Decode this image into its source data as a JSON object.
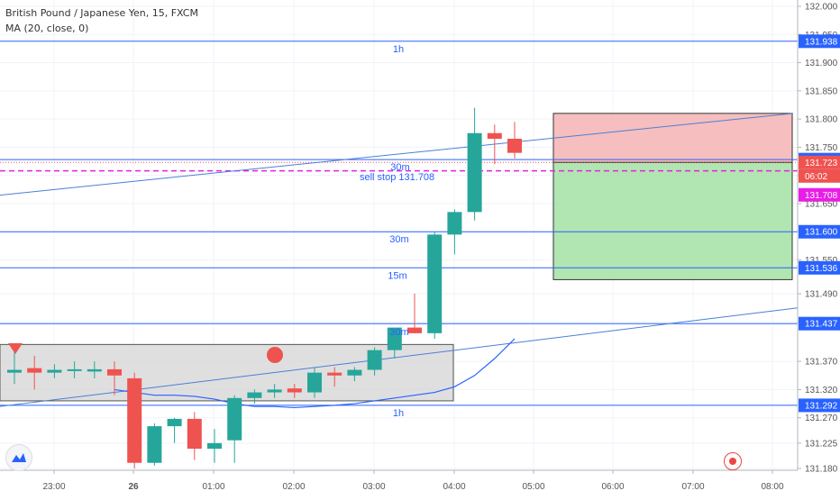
{
  "chart_data": {
    "type": "candlestick",
    "title": "British Pound / Japanese Yen, 15, FXCM",
    "indicator": "MA (20, close, 0)",
    "ylim": [
      131.18,
      132.0
    ],
    "y_ticks": [
      "132.000",
      "131.950",
      "131.900",
      "131.850",
      "131.800",
      "131.750",
      "131.700",
      "131.650",
      "131.600",
      "131.550",
      "131.490",
      "131.440",
      "131.370",
      "131.320",
      "131.270",
      "131.225",
      "131.180"
    ],
    "x_ticks": [
      "23:00",
      "26",
      "01:00",
      "02:00",
      "03:00",
      "04:00",
      "05:00",
      "06:00",
      "07:00",
      "08:00"
    ],
    "candles": [
      {
        "o": 131.35,
        "h": 131.39,
        "l": 131.33,
        "c": 131.355
      },
      {
        "o": 131.358,
        "h": 131.38,
        "l": 131.32,
        "c": 131.35
      },
      {
        "o": 131.35,
        "h": 131.365,
        "l": 131.34,
        "c": 131.355
      },
      {
        "o": 131.353,
        "h": 131.37,
        "l": 131.34,
        "c": 131.356
      },
      {
        "o": 131.352,
        "h": 131.37,
        "l": 131.34,
        "c": 131.356
      },
      {
        "o": 131.356,
        "h": 131.37,
        "l": 131.31,
        "c": 131.345
      },
      {
        "o": 131.34,
        "h": 131.35,
        "l": 131.18,
        "c": 131.19
      },
      {
        "o": 131.19,
        "h": 131.26,
        "l": 131.185,
        "c": 131.255
      },
      {
        "o": 131.255,
        "h": 131.27,
        "l": 131.225,
        "c": 131.268
      },
      {
        "o": 131.268,
        "h": 131.28,
        "l": 131.195,
        "c": 131.215
      },
      {
        "o": 131.215,
        "h": 131.25,
        "l": 131.19,
        "c": 131.225
      },
      {
        "o": 131.23,
        "h": 131.31,
        "l": 131.19,
        "c": 131.305
      },
      {
        "o": 131.305,
        "h": 131.32,
        "l": 131.295,
        "c": 131.315
      },
      {
        "o": 131.315,
        "h": 131.33,
        "l": 131.305,
        "c": 131.32
      },
      {
        "o": 131.322,
        "h": 131.33,
        "l": 131.305,
        "c": 131.315
      },
      {
        "o": 131.315,
        "h": 131.36,
        "l": 131.305,
        "c": 131.35
      },
      {
        "o": 131.35,
        "h": 131.36,
        "l": 131.325,
        "c": 131.345
      },
      {
        "o": 131.345,
        "h": 131.36,
        "l": 131.335,
        "c": 131.355
      },
      {
        "o": 131.355,
        "h": 131.395,
        "l": 131.345,
        "c": 131.39
      },
      {
        "o": 131.39,
        "h": 131.43,
        "l": 131.375,
        "c": 131.43
      },
      {
        "o": 131.43,
        "h": 131.49,
        "l": 131.42,
        "c": 131.42
      },
      {
        "o": 131.42,
        "h": 131.6,
        "l": 131.41,
        "c": 131.595
      },
      {
        "o": 131.595,
        "h": 131.64,
        "l": 131.56,
        "c": 131.635
      },
      {
        "o": 131.635,
        "h": 131.82,
        "l": 131.62,
        "c": 131.775
      },
      {
        "o": 131.775,
        "h": 131.79,
        "l": 131.72,
        "c": 131.765
      },
      {
        "o": 131.765,
        "h": 131.795,
        "l": 131.73,
        "c": 131.74
      }
    ],
    "ma": [
      131.32,
      131.315,
      131.31,
      131.31,
      131.308,
      131.303,
      131.295,
      131.29,
      131.29,
      131.288,
      131.29,
      131.292,
      131.295,
      131.3,
      131.305,
      131.31,
      131.315,
      131.325,
      131.345,
      131.375,
      131.41
    ],
    "hlines": [
      {
        "value": 131.938,
        "label": "131.938",
        "tf": "1h"
      },
      {
        "value": 131.728,
        "label": "131.728",
        "tf": "30m"
      },
      {
        "value": 131.6,
        "label": "131.600",
        "tf": "30m"
      },
      {
        "value": 131.536,
        "label": "131.536",
        "tf": "15m"
      },
      {
        "value": 131.437,
        "label": "131.437",
        "tf": "30m"
      },
      {
        "value": 131.292,
        "label": "131.292",
        "tf": "1h"
      }
    ],
    "current_price": {
      "value": 131.723,
      "label": "131.723",
      "countdown": "06:02"
    },
    "sell_stop": {
      "value": 131.708,
      "label": "131.708",
      "text": "sell stop 131.708"
    },
    "risk_reward": {
      "stop": 131.81,
      "target": 131.515
    },
    "range_box": {
      "top": 131.4,
      "bottom": 131.3
    },
    "trendline_top": [
      131.665,
      131.81
    ],
    "trendline_bottom": [
      131.29,
      131.465
    ],
    "markers": [
      {
        "shape": "triangle-down"
      },
      {
        "shape": "circle"
      }
    ],
    "colors": {
      "up": "#26a69a",
      "down": "#ef5350",
      "level": "#2962ff",
      "sellstop": "#e91ee6",
      "ma": "#2962ff"
    }
  }
}
